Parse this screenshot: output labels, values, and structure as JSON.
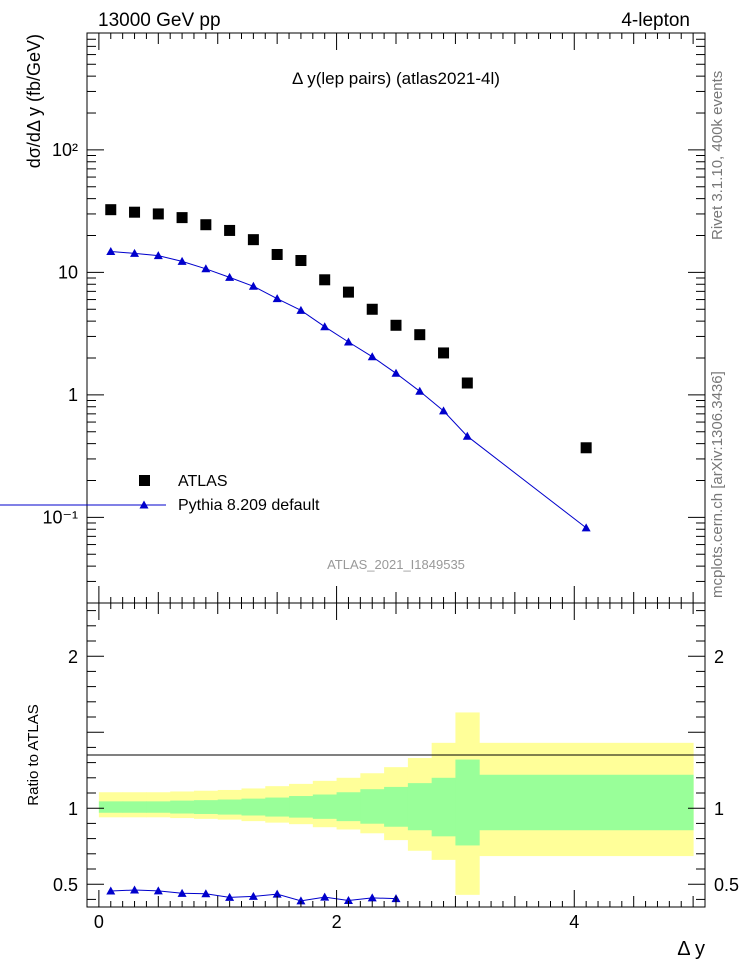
{
  "header": {
    "left": "13000 GeV pp",
    "right": "4-lepton"
  },
  "side_text": {
    "version": "Rivet 3.1.10,  400k events",
    "source": "mcplots.cern.ch [arXiv:1306.3436]"
  },
  "chart_data": [
    {
      "type": "scatter",
      "title": "Δ y(lep pairs) (atlas2021-4l)",
      "ylabel": "dσ/dΔ y (fb/GeV)",
      "yscale": "log",
      "ylim": [
        0.02,
        900
      ],
      "xlim": [
        -0.1,
        5.1
      ],
      "watermark": "ATLAS_2021_I1849535",
      "legend_placement": "bottom-left",
      "ytick_labels": [
        "10⁻¹",
        "1",
        "10",
        "10²"
      ],
      "x": [
        0.1,
        0.3,
        0.5,
        0.7,
        0.9,
        1.1,
        1.3,
        1.5,
        1.7,
        1.9,
        2.1,
        2.3,
        2.5,
        2.7,
        2.9,
        3.1,
        4.1
      ],
      "series": [
        {
          "name": "ATLAS",
          "marker": "square",
          "color": "#000000",
          "values": [
            32.5,
            31,
            30,
            28,
            24.5,
            22,
            18.5,
            14,
            12.5,
            8.7,
            6.9,
            5.0,
            3.7,
            3.1,
            2.2,
            1.25,
            0.37
          ]
        },
        {
          "name": "Pythia 8.209 default",
          "marker": "triangle",
          "color": "#0000cc",
          "values": [
            14.8,
            14.3,
            13.7,
            12.3,
            10.7,
            9.1,
            7.7,
            6.1,
            4.9,
            3.6,
            2.7,
            2.05,
            1.5,
            1.07,
            0.74,
            0.46,
            0.082
          ]
        }
      ]
    },
    {
      "type": "line",
      "ylabel": "Ratio to ATLAS",
      "xlabel": "Δ y",
      "xlim": [
        -0.1,
        5.1
      ],
      "ylim": [
        0.35,
        2.35
      ],
      "xtick_labels": [
        "0",
        "2",
        "4"
      ],
      "ytick_labels": [
        "0.5",
        "1",
        "2"
      ],
      "bands": {
        "edges": [
          0,
          0.2,
          0.4,
          0.6,
          0.8,
          1.0,
          1.2,
          1.4,
          1.6,
          1.8,
          2.0,
          2.2,
          2.4,
          2.6,
          2.8,
          3.0,
          3.2,
          5.0
        ],
        "yellow_lo": [
          0.94,
          0.94,
          0.94,
          0.935,
          0.93,
          0.925,
          0.915,
          0.905,
          0.895,
          0.875,
          0.86,
          0.835,
          0.79,
          0.72,
          0.66,
          0.43,
          0.685
        ],
        "yellow_hi": [
          1.105,
          1.105,
          1.105,
          1.11,
          1.115,
          1.12,
          1.13,
          1.145,
          1.16,
          1.18,
          1.2,
          1.23,
          1.27,
          1.33,
          1.43,
          1.63,
          1.43
        ],
        "green_lo": [
          0.97,
          0.97,
          0.97,
          0.965,
          0.962,
          0.958,
          0.952,
          0.945,
          0.938,
          0.93,
          0.915,
          0.898,
          0.878,
          0.855,
          0.815,
          0.755,
          0.855
        ],
        "green_hi": [
          1.045,
          1.045,
          1.045,
          1.05,
          1.053,
          1.057,
          1.063,
          1.07,
          1.08,
          1.09,
          1.105,
          1.125,
          1.14,
          1.165,
          1.2,
          1.32,
          1.22
        ],
        "yellow_color": "#ffff99",
        "green_color": "#99ff99"
      },
      "series": [
        {
          "name": "Pythia 8.209 default",
          "color": "#0000cc",
          "x": [
            0.1,
            0.3,
            0.5,
            0.7,
            0.9,
            1.1,
            1.3,
            1.5,
            1.7,
            1.9,
            2.1,
            2.3,
            2.5
          ],
          "values": [
            0.455,
            0.462,
            0.456,
            0.44,
            0.437,
            0.413,
            0.42,
            0.435,
            0.39,
            0.415,
            0.393,
            0.41,
            0.405
          ]
        }
      ]
    }
  ]
}
